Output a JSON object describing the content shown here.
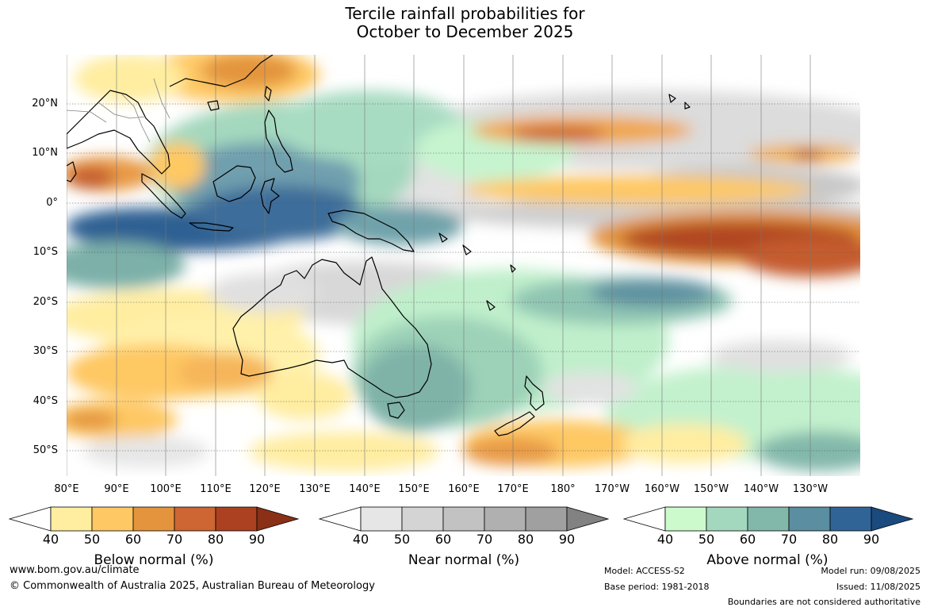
{
  "title": {
    "line1": "Tercile rainfall probabilities for",
    "line2": "October to December 2025"
  },
  "map": {
    "latitude_labels": [
      "20°N",
      "10°N",
      "0°",
      "10°S",
      "20°S",
      "30°S",
      "40°S",
      "50°S"
    ],
    "longitude_labels": [
      "80°E",
      "90°E",
      "100°E",
      "110°E",
      "120°E",
      "130°E",
      "140°E",
      "150°E",
      "160°E",
      "170°E",
      "180°",
      "170°W",
      "160°W",
      "150°W",
      "140°W",
      "130°W"
    ],
    "colors": {
      "below": [
        "#ffffff",
        "#ffeda0",
        "#fec864",
        "#e3943c",
        "#cd6632",
        "#ab4121",
        "#8a3016"
      ],
      "near": [
        "#ffffff",
        "#e6e6e6",
        "#d4d4d4",
        "#c2c2c2",
        "#b0b0b0",
        "#a0a0a0",
        "#828282"
      ],
      "above": [
        "#ffffff",
        "#ccfacc",
        "#a4d8be",
        "#82b8aa",
        "#5a8ea0",
        "#316496",
        "#1a4a7e"
      ],
      "land_outline": "#000000",
      "border_outline": "#808080"
    }
  },
  "legends": [
    {
      "title": "Below normal (%)",
      "ticks": [
        "40",
        "50",
        "60",
        "70",
        "80",
        "90"
      ],
      "colors": [
        "#ffffff",
        "#ffeda0",
        "#fec864",
        "#e3943c",
        "#cd6632",
        "#ab4121",
        "#8a3016"
      ]
    },
    {
      "title": "Near normal (%)",
      "ticks": [
        "40",
        "50",
        "60",
        "70",
        "80",
        "90"
      ],
      "colors": [
        "#ffffff",
        "#e6e6e6",
        "#d4d4d4",
        "#c2c2c2",
        "#b0b0b0",
        "#a0a0a0",
        "#828282"
      ]
    },
    {
      "title": "Above normal (%)",
      "ticks": [
        "40",
        "50",
        "60",
        "70",
        "80",
        "90"
      ],
      "colors": [
        "#ffffff",
        "#ccfacc",
        "#a4d8be",
        "#82b8aa",
        "#5a8ea0",
        "#316496",
        "#1a4a7e"
      ]
    }
  ],
  "footer": {
    "website": "www.bom.gov.au/climate",
    "copyright": "© Commonwealth of Australia 2025, Australian Bureau of Meteorology",
    "model": "Model: ACCESS-S2",
    "base_period": "Base period: 1981-2018",
    "model_run": "Model run: 09/08/2025",
    "issued": "Issued: 11/08/2025",
    "disclaimer": "Boundaries are not considered authoritative"
  }
}
